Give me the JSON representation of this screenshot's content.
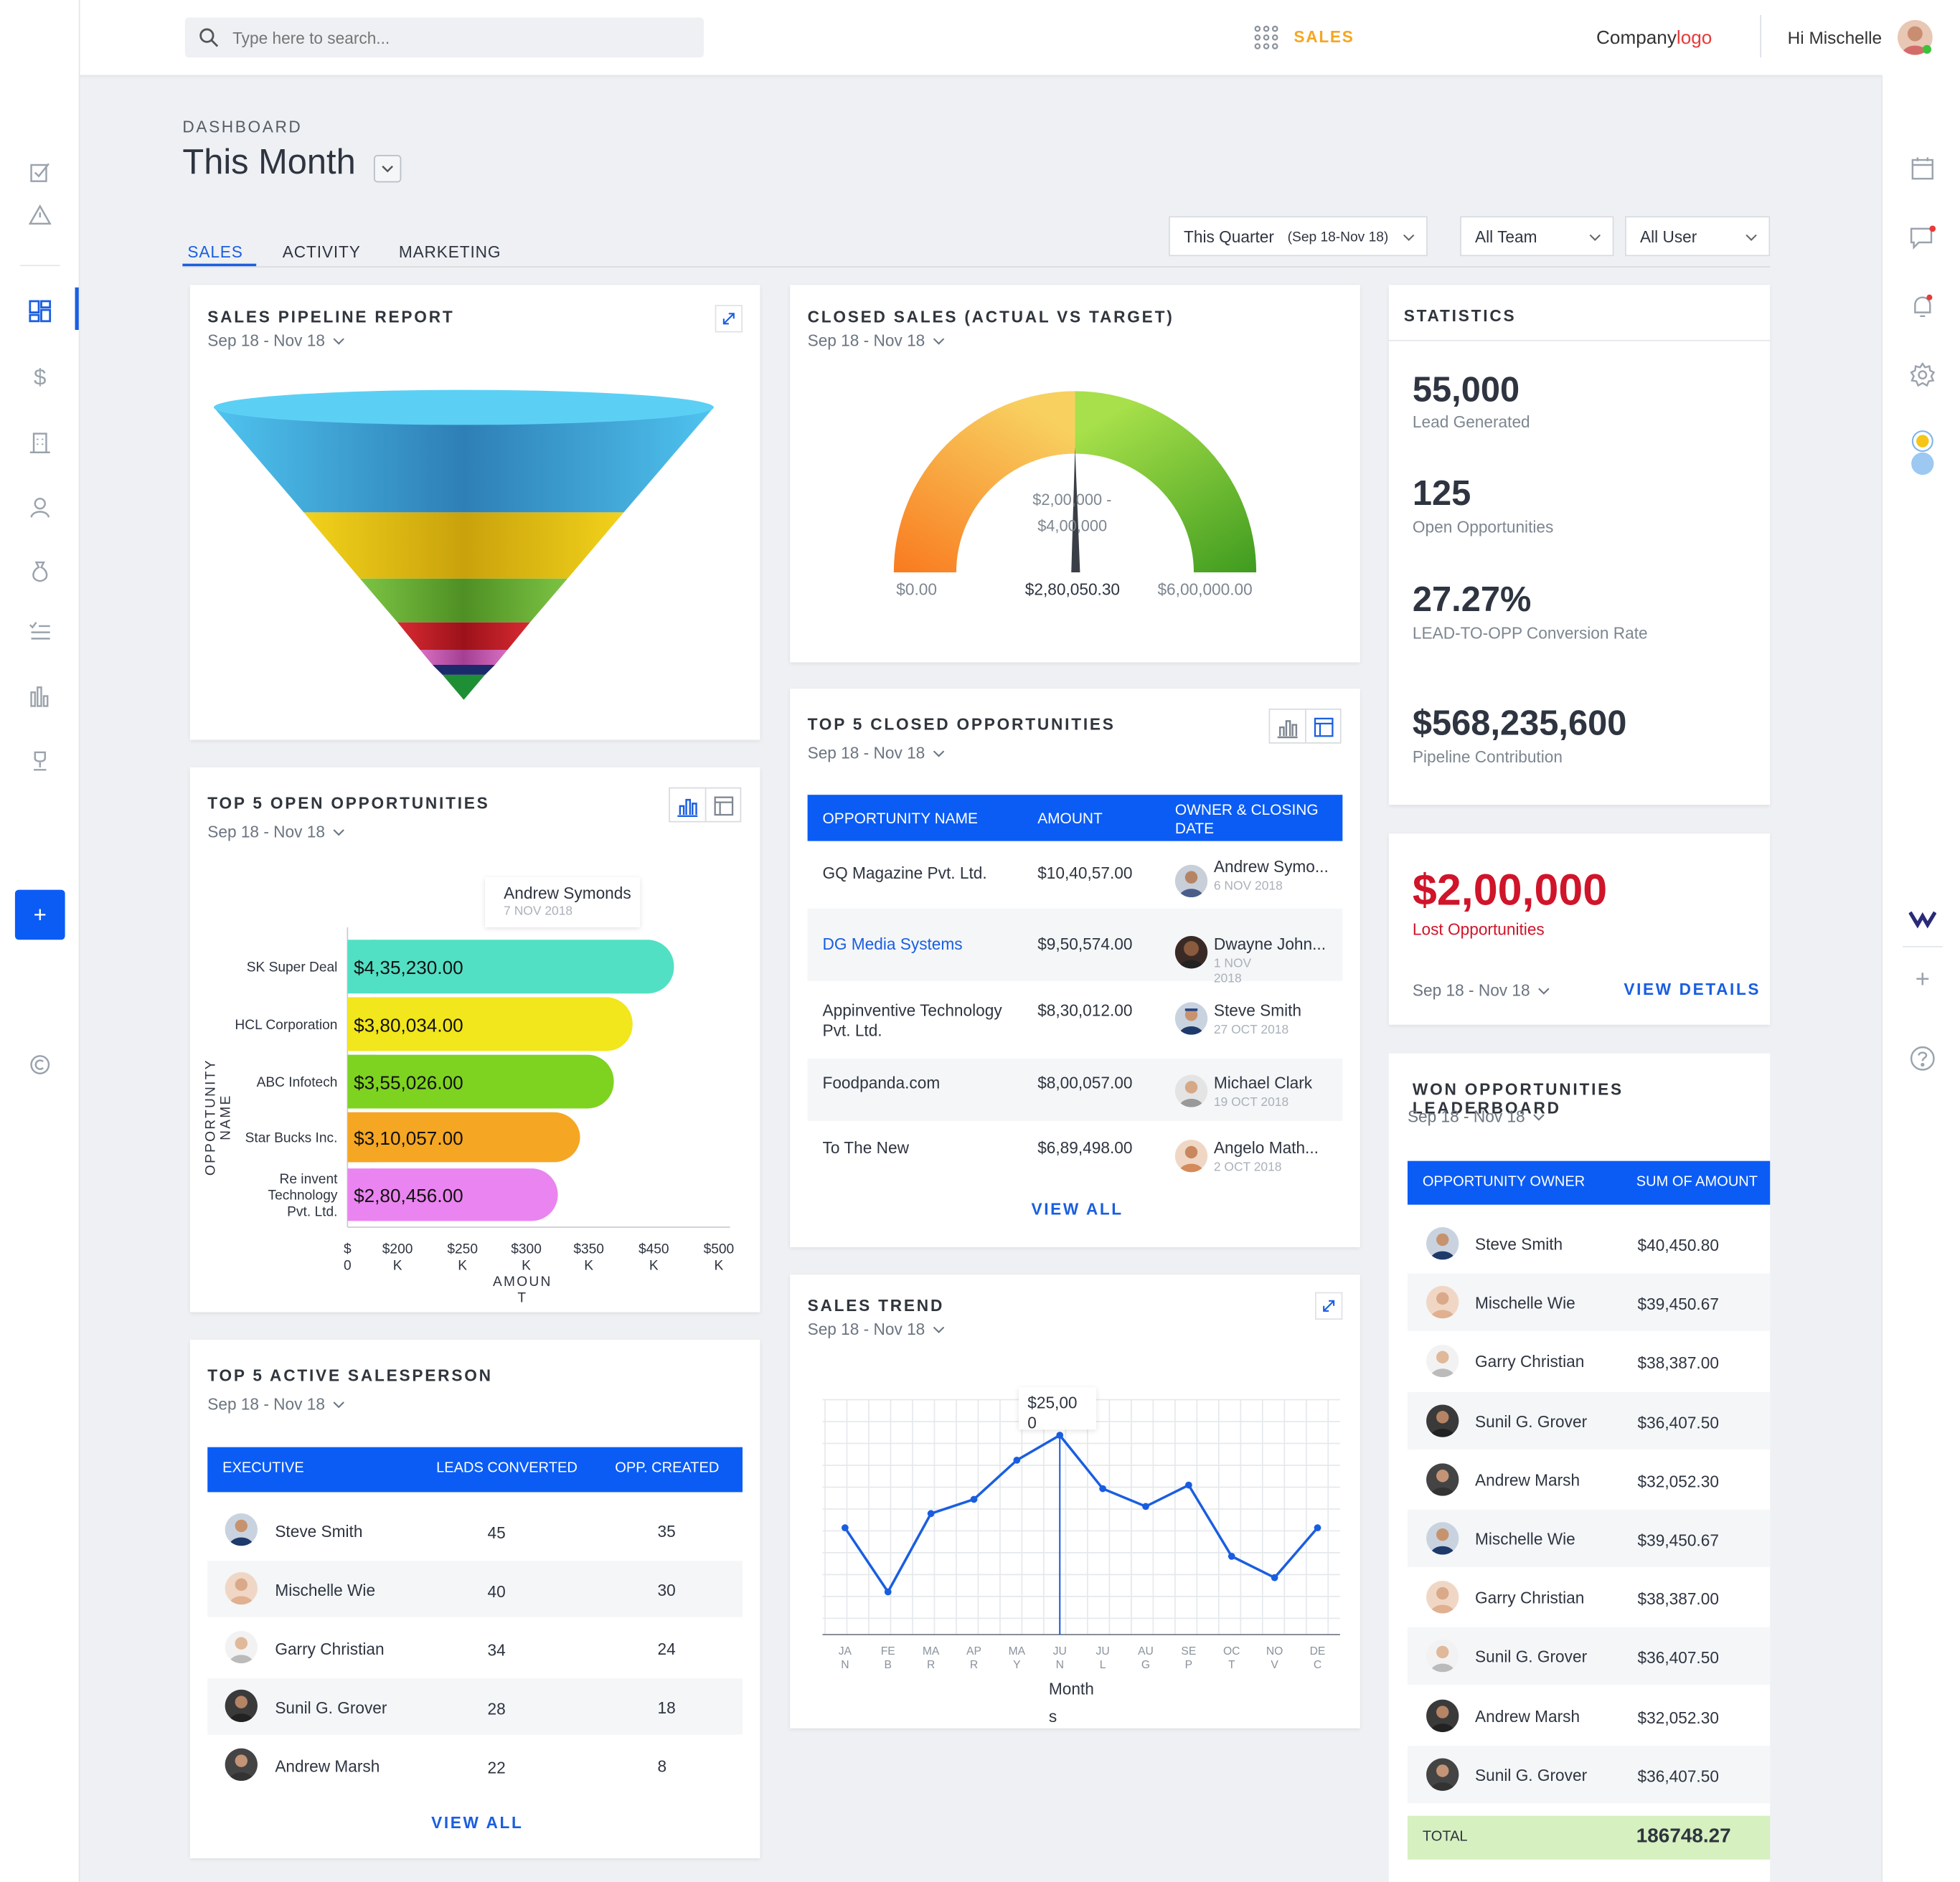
{
  "topbar": {
    "search_placeholder": "Type here to search...",
    "module": "SALES",
    "logo_company": "Company",
    "logo_logo": "logo",
    "greeting": "Hi Mischelle"
  },
  "header": {
    "breadcrumb": "DASHBOARD",
    "title": "This Month"
  },
  "tabs": [
    {
      "label": "SALES",
      "active": true
    },
    {
      "label": "ACTIVITY"
    },
    {
      "label": "MARKETING"
    }
  ],
  "filters": {
    "quarter_label": "This Quarter",
    "quarter_range": "(Sep 18-Nov 18)",
    "team": "All Team",
    "user": "All User"
  },
  "date_range": "Sep 18 - Nov 18",
  "pipeline": {
    "title": "SALES PIPELINE REPORT",
    "stages": [
      "#5ac8ef",
      "#e8c31a",
      "#6cb134",
      "#c41e28",
      "#c95bb0",
      "#2a9a3c"
    ]
  },
  "closed_sales": {
    "title": "CLOSED SALES (ACTUAL VS TARGET)",
    "target_line1": "$2,00,000 -",
    "target_line2": "$4,00,000",
    "min": "$0.00",
    "value": "$2,80,050.30",
    "max": "$6,00,000.00"
  },
  "statistics": {
    "title": "STATISTICS",
    "items": [
      {
        "value": "55,000",
        "label": "Lead Generated"
      },
      {
        "value": "125",
        "label": "Open Opportunities"
      },
      {
        "value": "27.27%",
        "label": "LEAD-TO-OPP Conversion Rate"
      },
      {
        "value": "$568,235,600",
        "label": "Pipeline Contribution"
      }
    ]
  },
  "lost": {
    "value": "$2,00,000",
    "label": "Lost Opportunities",
    "range": "Sep 18 - Nov 18",
    "link": "VIEW DETAILS"
  },
  "top_open": {
    "title": "TOP 5 OPEN OPPORTUNITIES",
    "tooltip_name": "Andrew Symonds",
    "tooltip_date": "7 NOV 2018",
    "y_axis_title_1": "OPPORTUNITY",
    "y_axis_title_2": "NAME",
    "x_axis_title_1": "AMOUN",
    "x_axis_title_2": "T"
  },
  "top_closed": {
    "title": "TOP 5 CLOSED OPPORTUNITIES",
    "columns": [
      "OPPORTUNITY NAME",
      "AMOUNT",
      "OWNER & CLOSING",
      "DATE"
    ],
    "rows": [
      {
        "name": "GQ Magazine Pvt. Ltd.",
        "amount": "$10,40,57.00",
        "owner": "Andrew Symo...",
        "date": "6 NOV 2018"
      },
      {
        "name": "DG Media Systems",
        "amount": "$9,50,574.00",
        "owner": "Dwayne John...",
        "date": "1 NOV",
        "date2": "2018"
      },
      {
        "name": "Appinventive Technology",
        "name2": "Pvt. Ltd.",
        "amount": "$8,30,012.00",
        "owner": "Steve Smith",
        "date": "27 OCT 2018"
      },
      {
        "name": "Foodpanda.com",
        "amount": "$8,00,057.00",
        "owner": "Michael Clark",
        "date": "19 OCT 2018"
      },
      {
        "name": "To The New",
        "amount": "$6,89,498.00",
        "owner": "Angelo Math...",
        "date": "2 OCT 2018"
      }
    ],
    "view_all": "VIEW ALL"
  },
  "won": {
    "title": "WON OPPORTUNITIES LEADERBOARD",
    "columns": [
      "OPPORTUNITY OWNER",
      "SUM OF AMOUNT"
    ],
    "rows": [
      {
        "name": "Steve Smith",
        "amount": "$40,450.80"
      },
      {
        "name": "Mischelle Wie",
        "amount": "$39,450.67"
      },
      {
        "name": "Garry Christian",
        "amount": "$38,387.00"
      },
      {
        "name": "Sunil G. Grover",
        "amount": "$36,407.50"
      },
      {
        "name": "Andrew Marsh",
        "amount": "$32,052.30"
      },
      {
        "name": "Mischelle Wie",
        "amount": "$39,450.67"
      },
      {
        "name": "Garry Christian",
        "amount": "$38,387.00"
      },
      {
        "name": "Sunil G. Grover",
        "amount": "$36,407.50"
      },
      {
        "name": "Andrew Marsh",
        "amount": "$32,052.30"
      },
      {
        "name": "Sunil G. Grover",
        "amount": "$36,407.50"
      }
    ],
    "total_label": "TOTAL",
    "total_value": "186748.27"
  },
  "active_sales": {
    "title": "TOP 5 ACTIVE SALESPERSON",
    "columns": [
      "EXECUTIVE",
      "LEADS CONVERTED",
      "OPP. CREATED"
    ],
    "rows": [
      {
        "name": "Steve Smith",
        "leads": "45",
        "opp": "35"
      },
      {
        "name": "Mischelle Wie",
        "leads": "40",
        "opp": "30"
      },
      {
        "name": "Garry Christian",
        "leads": "34",
        "opp": "24"
      },
      {
        "name": "Sunil G. Grover",
        "leads": "28",
        "opp": "18"
      },
      {
        "name": "Andrew Marsh",
        "leads": "22",
        "opp": "8"
      }
    ],
    "view_all": "VIEW ALL"
  },
  "sales_trend": {
    "title": "SALES TREND",
    "tooltip_1": "$25,00",
    "tooltip_2": "0",
    "x_title_1": "Month",
    "x_title_2": "s"
  },
  "chart_data": [
    {
      "type": "bar",
      "orientation": "horizontal",
      "title": "TOP 5 OPEN OPPORTUNITIES",
      "categories": [
        "SK Super Deal",
        "HCL Corporation",
        "ABC Infotech",
        "Star Bucks Inc.",
        "Re invent Technology Pvt. Ltd."
      ],
      "category_lines": [
        [
          "SK Super Deal"
        ],
        [
          "HCL Corporation"
        ],
        [
          "ABC Infotech"
        ],
        [
          "Star Bucks Inc."
        ],
        [
          "Re invent",
          "Technology",
          "Pvt. Ltd."
        ]
      ],
      "values": [
        435230,
        380034,
        355026,
        310057,
        280456
      ],
      "value_labels": [
        "$4,35,230.00",
        "$3,80,034.00",
        "$3,55,026.00",
        "$3,10,057.00",
        "$2,80,456.00"
      ],
      "colors": [
        "#52e0c4",
        "#f2e61c",
        "#7ed321",
        "#f5a623",
        "#ea84f0"
      ],
      "xticks": [
        {
          "v": 0,
          "l1": "$",
          "l2": "0"
        },
        {
          "v": 200000,
          "l1": "$200",
          "l2": "K"
        },
        {
          "v": 250000,
          "l1": "$250",
          "l2": "K"
        },
        {
          "v": 300000,
          "l1": "$300",
          "l2": "K"
        },
        {
          "v": 350000,
          "l1": "$350",
          "l2": "K"
        },
        {
          "v": 450000,
          "l1": "$450",
          "l2": "K"
        },
        {
          "v": 500000,
          "l1": "$500",
          "l2": "K"
        }
      ],
      "xlabel": "AMOUNT",
      "ylabel": "OPPORTUNITY NAME"
    },
    {
      "type": "line",
      "title": "SALES TREND",
      "categories": [
        "JAN",
        "FEB",
        "MAR",
        "APR",
        "MAY",
        "JUN",
        "JUL",
        "AUG",
        "SEP",
        "OCT",
        "NOV",
        "DEC"
      ],
      "tick_lines": [
        [
          "JA",
          "N"
        ],
        [
          "FE",
          "B"
        ],
        [
          "MA",
          "R"
        ],
        [
          "AP",
          "R"
        ],
        [
          "MA",
          "Y"
        ],
        [
          "JU",
          "N"
        ],
        [
          "JU",
          "L"
        ],
        [
          "AU",
          "G"
        ],
        [
          "SE",
          "P"
        ],
        [
          "OC",
          "T"
        ],
        [
          "NO",
          "V"
        ],
        [
          "DE",
          "C"
        ]
      ],
      "values": [
        1200,
        300,
        1400,
        1600,
        2150,
        2500,
        1750,
        1500,
        1800,
        800,
        500,
        1200
      ],
      "ylim": [
        -300,
        3000
      ],
      "highlight_index": 5,
      "xlabel": "Months",
      "color": "#1a5ee0"
    }
  ]
}
